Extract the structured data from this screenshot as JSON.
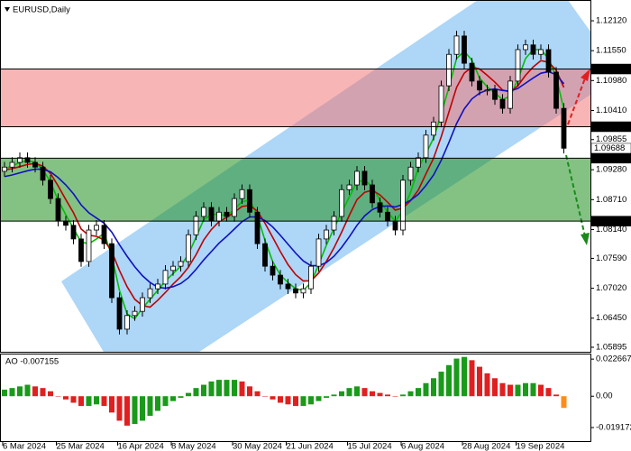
{
  "chart_data": [
    {
      "type": "candlestick",
      "title": "EURUSD,Daily",
      "categories": [
        "6 Mar 2024",
        null,
        null,
        null,
        null,
        null,
        null,
        "25 Mar 2024",
        null,
        null,
        null,
        null,
        null,
        null,
        null,
        "16 Apr 2024",
        null,
        null,
        null,
        null,
        null,
        null,
        "8 May 2024",
        null,
        null,
        null,
        null,
        null,
        null,
        null,
        "30 May 2024",
        null,
        null,
        null,
        null,
        null,
        null,
        "21 Jun 2024",
        null,
        null,
        null,
        null,
        null,
        null,
        null,
        "15 Jul 2024",
        null,
        null,
        null,
        null,
        null,
        null,
        "6 Aug 2024",
        null,
        null,
        null,
        null,
        null,
        null,
        null,
        "28 Aug 2024",
        null,
        null,
        null,
        null,
        null,
        null,
        "19 Sep 2024",
        null,
        null,
        null,
        null,
        null,
        null
      ],
      "open": [
        1.0925,
        1.0933,
        1.0942,
        1.0951,
        1.0942,
        1.0933,
        1.0908,
        1.0873,
        1.083,
        1.0822,
        1.0796,
        1.0753,
        1.0813,
        1.0822,
        1.0787,
        1.0684,
        1.0624,
        1.065,
        1.0658,
        1.0684,
        1.0701,
        1.071,
        1.0736,
        1.0744,
        1.0753,
        1.0804,
        1.0839,
        1.0856,
        1.083,
        1.0847,
        1.0839,
        1.0873,
        1.089,
        1.0847,
        1.0787,
        1.0744,
        1.0727,
        1.071,
        1.0701,
        1.0693,
        1.0701,
        1.0744,
        1.0796,
        1.0813,
        1.0839,
        1.089,
        1.0899,
        1.0925,
        1.0899,
        1.0865,
        1.0847,
        1.083,
        1.0813,
        1.0908,
        1.0933,
        1.0951,
        1.0994,
        1.1019,
        1.1088,
        1.1148,
        1.1183,
        1.1131,
        1.1097,
        1.108,
        1.108,
        1.1062,
        1.1045,
        1.1097,
        1.1157,
        1.1166,
        1.1148,
        1.1157,
        1.1114,
        1.1045
      ],
      "high": [
        1.0943,
        1.0952,
        1.0961,
        1.0961,
        1.0952,
        1.0943,
        1.0918,
        1.0883,
        1.084,
        1.0832,
        1.0806,
        1.0823,
        1.0832,
        1.0832,
        1.0797,
        1.0694,
        1.066,
        1.0668,
        1.0694,
        1.0711,
        1.072,
        1.0746,
        1.0754,
        1.0763,
        1.0814,
        1.0849,
        1.0866,
        1.0866,
        1.0857,
        1.0857,
        1.0883,
        1.09,
        1.09,
        1.0857,
        1.0797,
        1.0754,
        1.0737,
        1.072,
        1.0711,
        1.0711,
        1.0754,
        1.0806,
        1.0823,
        1.0849,
        1.09,
        1.0909,
        1.0935,
        1.0935,
        1.0909,
        1.0875,
        1.0857,
        1.084,
        1.0918,
        1.0943,
        1.0961,
        1.1004,
        1.1029,
        1.1098,
        1.1158,
        1.1193,
        1.1193,
        1.1141,
        1.1107,
        1.109,
        1.109,
        1.1072,
        1.1107,
        1.1167,
        1.1176,
        1.1176,
        1.1167,
        1.1167,
        1.1124,
        1.1055
      ],
      "low": [
        1.0915,
        1.0923,
        1.0932,
        1.0932,
        1.0923,
        1.0898,
        1.0863,
        1.082,
        1.0812,
        1.0786,
        1.0743,
        1.0743,
        1.0803,
        1.0777,
        1.0674,
        1.0614,
        1.0614,
        1.064,
        1.0648,
        1.0674,
        1.0691,
        1.07,
        1.0726,
        1.0734,
        1.0743,
        1.0794,
        1.0829,
        1.082,
        1.082,
        1.0829,
        1.0829,
        1.0863,
        1.0837,
        1.0777,
        1.0734,
        1.0717,
        1.07,
        1.0691,
        1.0683,
        1.0683,
        1.0691,
        1.0734,
        1.0786,
        1.0803,
        1.0829,
        1.088,
        1.0889,
        1.0889,
        1.0855,
        1.0837,
        1.082,
        1.0803,
        1.0803,
        1.0898,
        1.0923,
        1.0941,
        1.0984,
        1.1009,
        1.1078,
        1.1138,
        1.1121,
        1.1087,
        1.107,
        1.107,
        1.1052,
        1.1035,
        1.1035,
        1.1087,
        1.1147,
        1.1138,
        1.1138,
        1.1104,
        1.1035,
        1.0959
      ],
      "close": [
        1.0933,
        1.0942,
        1.0951,
        1.0942,
        1.0933,
        1.0908,
        1.0873,
        1.083,
        1.0822,
        1.0796,
        1.0753,
        1.0813,
        1.0822,
        1.0787,
        1.0684,
        1.0624,
        1.065,
        1.0658,
        1.0684,
        1.0701,
        1.071,
        1.0736,
        1.0744,
        1.0753,
        1.0804,
        1.0839,
        1.0856,
        1.083,
        1.0847,
        1.0839,
        1.0873,
        1.089,
        1.0847,
        1.0787,
        1.0744,
        1.0727,
        1.071,
        1.0701,
        1.0693,
        1.0701,
        1.0744,
        1.0796,
        1.0813,
        1.0839,
        1.089,
        1.0899,
        1.0925,
        1.0899,
        1.0865,
        1.0847,
        1.083,
        1.0813,
        1.0908,
        1.0933,
        1.0951,
        1.0994,
        1.1019,
        1.1088,
        1.1148,
        1.1183,
        1.1131,
        1.1097,
        1.108,
        1.108,
        1.1062,
        1.1045,
        1.1097,
        1.1157,
        1.1166,
        1.1148,
        1.1157,
        1.1114,
        1.1045,
        1.0969
      ],
      "up_color": "#ffffff",
      "down_color": "#000000",
      "ma_lines": [
        {
          "color": "#00c000",
          "values": [
            1.093,
            1.0935,
            1.0942,
            1.0945,
            1.0942,
            1.0928,
            1.0905,
            1.087,
            1.0842,
            1.0816,
            1.079,
            1.0787,
            1.0796,
            1.0807,
            1.0764,
            1.0698,
            1.0653,
            1.0644,
            1.0664,
            1.0681,
            1.0698,
            1.0716,
            1.073,
            1.0744,
            1.0767,
            1.0799,
            1.0833,
            1.0842,
            1.0844,
            1.0839,
            1.0853,
            1.0867,
            1.087,
            1.0841,
            1.0793,
            1.0753,
            1.0727,
            1.0713,
            1.0701,
            1.0698,
            1.0713,
            1.0747,
            1.0784,
            1.0816,
            1.0847,
            1.0876,
            1.0905,
            1.0908,
            1.0896,
            1.087,
            1.0847,
            1.083,
            1.085,
            1.0885,
            1.0931,
            1.0959,
            1.0988,
            1.1034,
            1.1085,
            1.114,
            1.1154,
            1.1137,
            1.1103,
            1.1086,
            1.1074,
            1.1062,
            1.1068,
            1.11,
            1.114,
            1.1157,
            1.1157,
            1.114,
            1.1105,
            1.1043
          ]
        },
        {
          "color": "#c00000",
          "values": [
            1.0928,
            1.093,
            1.0934,
            1.0938,
            1.094,
            1.0935,
            1.0921,
            1.0897,
            1.0871,
            1.0846,
            1.0815,
            1.0803,
            1.0801,
            1.0794,
            1.0772,
            1.0736,
            1.0705,
            1.0681,
            1.0669,
            1.0666,
            1.0679,
            1.0694,
            1.071,
            1.0724,
            1.0742,
            1.0766,
            1.0794,
            1.0814,
            1.0829,
            1.0837,
            1.0847,
            1.0858,
            1.086,
            1.0849,
            1.0826,
            1.0799,
            1.0772,
            1.0747,
            1.0728,
            1.0716,
            1.0716,
            1.0731,
            1.0753,
            1.0779,
            1.0809,
            1.0841,
            1.0871,
            1.0885,
            1.0889,
            1.088,
            1.0866,
            1.0851,
            1.0855,
            1.0869,
            1.0889,
            1.092,
            1.095,
            1.0991,
            1.1038,
            1.1085,
            1.1112,
            1.1124,
            1.112,
            1.1108,
            1.1095,
            1.108,
            1.1076,
            1.1088,
            1.1108,
            1.1124,
            1.1136,
            1.1133,
            1.1118,
            1.1085
          ]
        },
        {
          "color": "#1010c0",
          "values": [
            1.0915,
            1.0918,
            1.0922,
            1.0926,
            1.0929,
            1.0929,
            1.0924,
            1.0913,
            1.0899,
            1.0882,
            1.0861,
            1.0846,
            1.0836,
            1.0826,
            1.0809,
            1.0785,
            1.0763,
            1.0743,
            1.0726,
            1.0713,
            1.0704,
            1.0702,
            1.0705,
            1.0711,
            1.0722,
            1.0738,
            1.0756,
            1.0772,
            1.0788,
            1.0801,
            1.0815,
            1.0829,
            1.0838,
            1.0838,
            1.0831,
            1.0819,
            1.0803,
            1.0786,
            1.0769,
            1.0754,
            1.0745,
            1.0745,
            1.0751,
            1.0763,
            1.078,
            1.08,
            1.0822,
            1.084,
            1.0852,
            1.0858,
            1.0859,
            1.0857,
            1.0862,
            1.087,
            1.0881,
            1.0898,
            1.0918,
            1.0946,
            1.098,
            1.1016,
            1.1044,
            1.1063,
            1.1074,
            1.108,
            1.1082,
            1.1079,
            1.1078,
            1.1083,
            1.1093,
            1.1103,
            1.1112,
            1.1115,
            1.1109,
            1.1092
          ]
        }
      ],
      "zones": [
        {
          "top": {
            "value": 1.112,
            "label": "1.11200"
          },
          "bottom": {
            "value": 1.101,
            "label": "1.10100"
          },
          "color": "#f07878"
        },
        {
          "top": {
            "value": 1.095,
            "label": "1.09500"
          },
          "bottom": {
            "value": 1.083,
            "label": "1.08300"
          },
          "color": "#1f8f1f"
        }
      ],
      "current_price": {
        "value": 1.09688,
        "label": "1.09688"
      },
      "ylim": [
        1.05809,
        1.12516
      ],
      "yticks": [
        {
          "value": 1.1212,
          "label": "1.12120"
        },
        {
          "value": 1.1155,
          "label": "1.11550"
        },
        {
          "value": 1.1098,
          "label": "1.10980"
        },
        {
          "value": 1.1041,
          "label": "1.10410"
        },
        {
          "value": 1.09855,
          "label": "1.09855"
        },
        {
          "value": 1.0928,
          "label": "1.09280"
        },
        {
          "value": 1.0871,
          "label": "1.08710"
        },
        {
          "value": 1.0814,
          "label": "1.08140"
        },
        {
          "value": 1.0759,
          "label": "1.07590"
        },
        {
          "value": 1.0702,
          "label": "1.07020"
        },
        {
          "value": 1.0645,
          "label": "1.06450"
        },
        {
          "value": 1.05895,
          "label": "1.05895"
        }
      ]
    },
    {
      "type": "bar",
      "title": "AO -0.007155",
      "values": [
        0.004,
        0.005,
        0.006,
        0.007,
        0.006,
        0.005,
        0.003,
        0.0,
        -0.002,
        -0.004,
        -0.006,
        -0.006,
        -0.005,
        -0.006,
        -0.01,
        -0.015,
        -0.018,
        -0.017,
        -0.015,
        -0.012,
        -0.009,
        -0.006,
        -0.003,
        -0.001,
        0.002,
        0.005,
        0.007,
        0.009,
        0.01,
        0.01,
        0.01,
        0.009,
        0.006,
        0.003,
        0.0,
        -0.002,
        -0.004,
        -0.005,
        -0.006,
        -0.006,
        -0.005,
        -0.003,
        -0.001,
        0.001,
        0.003,
        0.005,
        0.006,
        0.005,
        0.003,
        0.002,
        0.001,
        0.0,
        0.001,
        0.003,
        0.005,
        0.008,
        0.011,
        0.015,
        0.019,
        0.023,
        0.024,
        0.022,
        0.018,
        0.014,
        0.011,
        0.008,
        0.007,
        0.007,
        0.008,
        0.008,
        0.007,
        0.005,
        0.001,
        -0.007155
      ],
      "up_color": "#1a9a1a",
      "down_color": "#e02020",
      "last_color": "#ff8c1a",
      "ylim": [
        -0.028,
        0.0255
      ],
      "yticks": [
        0.022667,
        {
          "value": 0,
          "label": "0.00"
        },
        -0.019172
      ]
    }
  ]
}
